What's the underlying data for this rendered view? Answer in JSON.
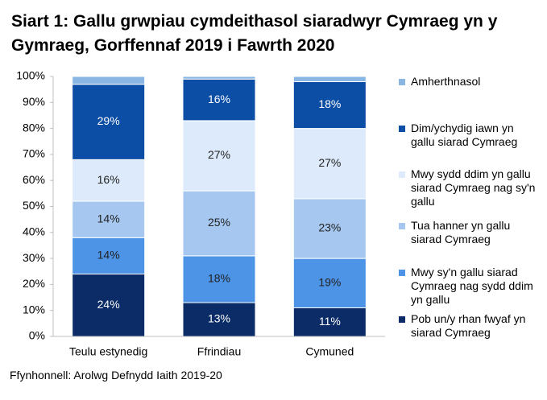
{
  "chart_data": {
    "type": "stacked-bar",
    "title": "Siart 1: Gallu grwpiau cymdeithasol siaradwyr Cymraeg yn y Gymraeg, Gorffennaf 2019 i Fawrth 2020",
    "source": "Ffynhonnell: Arolwg Defnydd Iaith 2019-20",
    "categories": [
      "Teulu estynedig",
      "Ffrindiau",
      "Cymuned"
    ],
    "series": [
      {
        "name": "Pob un/y rhan fwyaf yn siarad Cymraeg",
        "color": "#0b2c66",
        "values": [
          24,
          13,
          11
        ],
        "value_labels": [
          "24%",
          "13%",
          "11%"
        ]
      },
      {
        "name": "Mwy sy'n gallu siarad Cymraeg nag sydd ddim yn gallu",
        "color": "#4d93e6",
        "values": [
          14,
          18,
          19
        ],
        "value_labels": [
          "14%",
          "18%",
          "19%"
        ]
      },
      {
        "name": "Tua hanner yn gallu siarad Cymraeg",
        "color": "#a6c8f0",
        "values": [
          14,
          25,
          23
        ],
        "value_labels": [
          "14%",
          "25%",
          "23%"
        ]
      },
      {
        "name": "Mwy sydd ddim yn gallu siarad Cymraeg nag sy'n gallu",
        "color": "#dceafb",
        "values": [
          16,
          27,
          27
        ],
        "value_labels": [
          "16%",
          "27%",
          "27%"
        ]
      },
      {
        "name": "Dim/ychydig iawn yn gallu siarad Cymraeg",
        "color": "#0c4da6",
        "values": [
          29,
          16,
          18
        ],
        "value_labels": [
          "29%",
          "16%",
          "18%"
        ]
      },
      {
        "name": "Amherthnasol",
        "color": "#8ab6e4",
        "values": [
          3,
          1,
          2
        ]
      }
    ],
    "ylim": [
      0,
      100
    ],
    "yticks": [
      {
        "value": 0,
        "label": "0%"
      },
      {
        "value": 10,
        "label": "10%"
      },
      {
        "value": 20,
        "label": "20%"
      },
      {
        "value": 30,
        "label": "30%"
      },
      {
        "value": 40,
        "label": "40%"
      },
      {
        "value": 50,
        "label": "50%"
      },
      {
        "value": 60,
        "label": "60%"
      },
      {
        "value": 70,
        "label": "70%"
      },
      {
        "value": 80,
        "label": "80%"
      },
      {
        "value": 90,
        "label": "90%"
      },
      {
        "value": 100,
        "label": "100%"
      }
    ],
    "legend": "right"
  }
}
